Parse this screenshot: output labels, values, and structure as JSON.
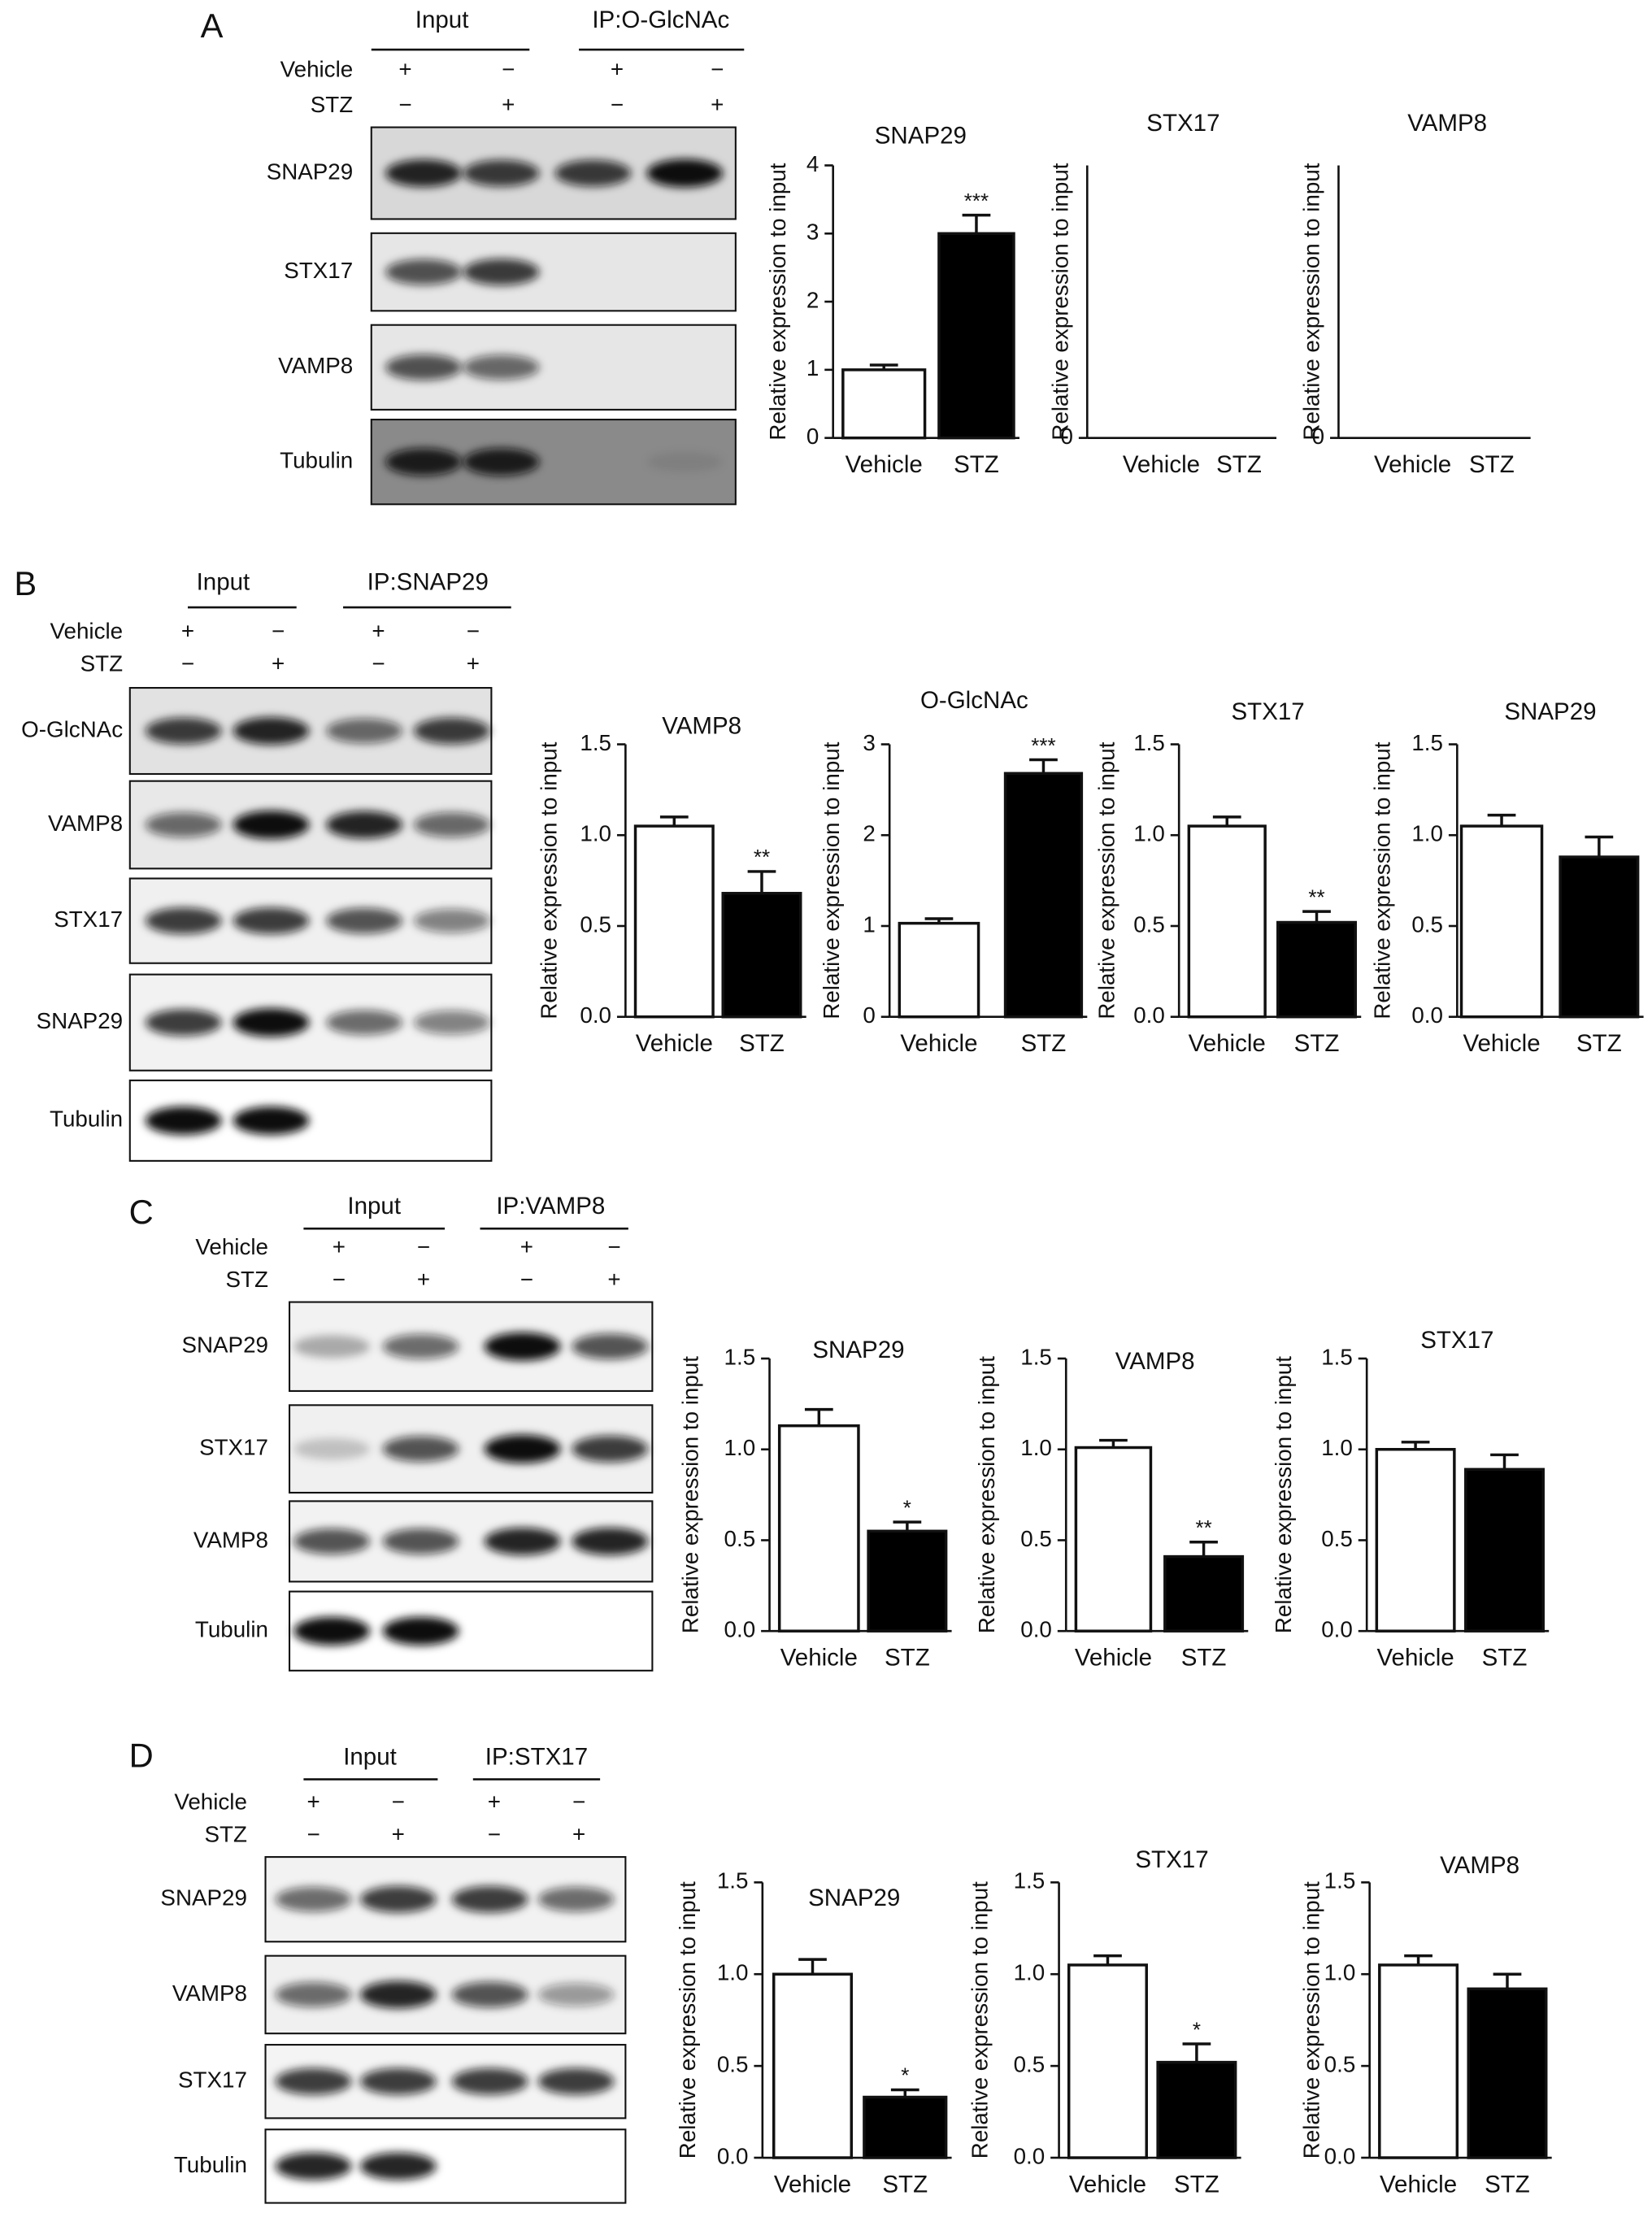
{
  "panels": [
    {
      "letter": "A",
      "groups": [
        "Input",
        "IP:O-GlcNAc"
      ],
      "conditions": [
        {
          "name": "Vehicle",
          "signs": [
            "+",
            "−",
            "+",
            "−"
          ]
        },
        {
          "name": "STZ",
          "signs": [
            "−",
            "+",
            "−",
            "+"
          ]
        }
      ],
      "blots": [
        "SNAP29",
        "STX17",
        "VAMP8",
        "Tubulin"
      ]
    },
    {
      "letter": "B",
      "groups": [
        "Input",
        "IP:SNAP29"
      ],
      "conditions": [
        {
          "name": "Vehicle",
          "signs": [
            "+",
            "−",
            "+",
            "−"
          ]
        },
        {
          "name": "STZ",
          "signs": [
            "−",
            "+",
            "−",
            "+"
          ]
        }
      ],
      "blots": [
        "O-GlcNAc",
        "VAMP8",
        "STX17",
        "SNAP29",
        "Tubulin"
      ]
    },
    {
      "letter": "C",
      "groups": [
        "Input",
        "IP:VAMP8"
      ],
      "conditions": [
        {
          "name": "Vehicle",
          "signs": [
            "+",
            "−",
            "+",
            "−"
          ]
        },
        {
          "name": "STZ",
          "signs": [
            "−",
            "+",
            "−",
            "+"
          ]
        }
      ],
      "blots": [
        "SNAP29",
        "STX17",
        "VAMP8",
        "Tubulin"
      ]
    },
    {
      "letter": "D",
      "groups": [
        "Input",
        "IP:STX17"
      ],
      "conditions": [
        {
          "name": "Vehicle",
          "signs": [
            "+",
            "−",
            "+",
            "−"
          ]
        },
        {
          "name": "STZ",
          "signs": [
            "−",
            "+",
            "−",
            "+"
          ]
        }
      ],
      "blots": [
        "SNAP29",
        "VAMP8",
        "STX17",
        "Tubulin"
      ]
    }
  ],
  "chart_data": [
    {
      "type": "bar",
      "title": "SNAP29",
      "y_label": "Relative expression to input",
      "categories": [
        "Vehicle",
        "STZ"
      ],
      "values": [
        1.0,
        3.0
      ],
      "errors": [
        0.07,
        0.27
      ],
      "colors": [
        "#ffffff",
        "#000000"
      ],
      "annotations": [
        {
          "category": "STZ",
          "text": "***"
        }
      ],
      "ylim": [
        0,
        4
      ],
      "yticks": [
        0,
        1,
        2,
        3,
        4
      ]
    },
    {
      "type": "bar",
      "title": "STX17",
      "y_label": "Relative expression to input",
      "categories": [
        "Vehicle",
        "STZ"
      ],
      "values": [
        0,
        0
      ],
      "errors": [
        0,
        0
      ],
      "colors": [
        "#ffffff",
        "#000000"
      ],
      "ylim": [
        0,
        4
      ],
      "yticks": [
        0
      ]
    },
    {
      "type": "bar",
      "title": "VAMP8",
      "y_label": "Relative expression to input",
      "categories": [
        "Vehicle",
        "STZ"
      ],
      "values": [
        0,
        0
      ],
      "errors": [
        0,
        0
      ],
      "colors": [
        "#ffffff",
        "#000000"
      ],
      "ylim": [
        0,
        4
      ],
      "yticks": [
        0
      ]
    },
    {
      "type": "bar",
      "title": "VAMP8",
      "y_label": "Relative expression to input",
      "categories": [
        "Vehicle",
        "STZ"
      ],
      "values": [
        1.05,
        0.68
      ],
      "errors": [
        0.05,
        0.12
      ],
      "colors": [
        "#ffffff",
        "#000000"
      ],
      "annotations": [
        {
          "category": "STZ",
          "text": "**"
        }
      ],
      "ylim": [
        0,
        1.5
      ],
      "yticks": [
        {
          "value": 0,
          "label": "0.0"
        },
        {
          "value": 0.5,
          "label": "0.5"
        },
        {
          "value": 1,
          "label": "1.0"
        },
        {
          "value": 1.5,
          "label": "1.5"
        }
      ]
    },
    {
      "type": "bar",
      "title": "O-GlcNAc",
      "y_label": "Relative expression to input",
      "categories": [
        "Vehicle",
        "STZ"
      ],
      "values": [
        1.03,
        2.68
      ],
      "errors": [
        0.05,
        0.15
      ],
      "colors": [
        "#ffffff",
        "#000000"
      ],
      "annotations": [
        {
          "category": "STZ",
          "text": "***"
        }
      ],
      "ylim": [
        0,
        3
      ],
      "yticks": [
        0,
        1,
        2,
        3
      ]
    },
    {
      "type": "bar",
      "title": "STX17",
      "y_label": "Relative expression to input",
      "categories": [
        "Vehicle",
        "STZ"
      ],
      "values": [
        1.05,
        0.52
      ],
      "errors": [
        0.05,
        0.06
      ],
      "colors": [
        "#ffffff",
        "#000000"
      ],
      "annotations": [
        {
          "category": "STZ",
          "text": "**"
        }
      ],
      "ylim": [
        0,
        1.5
      ],
      "yticks": [
        {
          "value": 0,
          "label": "0.0"
        },
        {
          "value": 0.5,
          "label": "0.5"
        },
        {
          "value": 1,
          "label": "1.0"
        },
        {
          "value": 1.5,
          "label": "1.5"
        }
      ]
    },
    {
      "type": "bar",
      "title": "SNAP29",
      "y_label": "Relative expression to input",
      "categories": [
        "Vehicle",
        "STZ"
      ],
      "values": [
        1.05,
        0.88
      ],
      "errors": [
        0.06,
        0.11
      ],
      "colors": [
        "#ffffff",
        "#000000"
      ],
      "ylim": [
        0,
        1.5
      ],
      "yticks": [
        {
          "value": 0,
          "label": "0.0"
        },
        {
          "value": 0.5,
          "label": "0.5"
        },
        {
          "value": 1,
          "label": "1.0"
        },
        {
          "value": 1.5,
          "label": "1.5"
        }
      ]
    },
    {
      "type": "bar",
      "title": "SNAP29",
      "y_label": "Relative expression to input",
      "categories": [
        "Vehicle",
        "STZ"
      ],
      "values": [
        1.13,
        0.55
      ],
      "errors": [
        0.09,
        0.05
      ],
      "colors": [
        "#ffffff",
        "#000000"
      ],
      "annotations": [
        {
          "category": "STZ",
          "text": "*"
        }
      ],
      "ylim": [
        0,
        1.5
      ],
      "yticks": [
        {
          "value": 0,
          "label": "0.0"
        },
        {
          "value": 0.5,
          "label": "0.5"
        },
        {
          "value": 1,
          "label": "1.0"
        },
        {
          "value": 1.5,
          "label": "1.5"
        }
      ]
    },
    {
      "type": "bar",
      "title": "VAMP8",
      "y_label": "Relative expression to input",
      "categories": [
        "Vehicle",
        "STZ"
      ],
      "values": [
        1.01,
        0.41
      ],
      "errors": [
        0.04,
        0.08
      ],
      "colors": [
        "#ffffff",
        "#000000"
      ],
      "annotations": [
        {
          "category": "STZ",
          "text": "**"
        }
      ],
      "ylim": [
        0,
        1.5
      ],
      "yticks": [
        {
          "value": 0,
          "label": "0.0"
        },
        {
          "value": 0.5,
          "label": "0.5"
        },
        {
          "value": 1,
          "label": "1.0"
        },
        {
          "value": 1.5,
          "label": "1.5"
        }
      ]
    },
    {
      "type": "bar",
      "title": "STX17",
      "y_label": "Relative expression to input",
      "categories": [
        "Vehicle",
        "STZ"
      ],
      "values": [
        1.0,
        0.89
      ],
      "errors": [
        0.04,
        0.08
      ],
      "colors": [
        "#ffffff",
        "#000000"
      ],
      "ylim": [
        0,
        1.5
      ],
      "yticks": [
        {
          "value": 0,
          "label": "0.0"
        },
        {
          "value": 0.5,
          "label": "0.5"
        },
        {
          "value": 1,
          "label": "1.0"
        },
        {
          "value": 1.5,
          "label": "1.5"
        }
      ]
    },
    {
      "type": "bar",
      "title": "SNAP29",
      "y_label": "Relative expression to input",
      "categories": [
        "Vehicle",
        "STZ"
      ],
      "values": [
        1.0,
        0.33
      ],
      "errors": [
        0.08,
        0.04
      ],
      "colors": [
        "#ffffff",
        "#000000"
      ],
      "annotations": [
        {
          "category": "STZ",
          "text": "*"
        }
      ],
      "ylim": [
        0,
        1.5
      ],
      "yticks": [
        {
          "value": 0,
          "label": "0.0"
        },
        {
          "value": 0.5,
          "label": "0.5"
        },
        {
          "value": 1,
          "label": "1.0"
        },
        {
          "value": 1.5,
          "label": "1.5"
        }
      ]
    },
    {
      "type": "bar",
      "title": "STX17",
      "y_label": "Relative expression to input",
      "categories": [
        "Vehicle",
        "STZ"
      ],
      "values": [
        1.05,
        0.52
      ],
      "errors": [
        0.05,
        0.1
      ],
      "colors": [
        "#ffffff",
        "#000000"
      ],
      "annotations": [
        {
          "category": "STZ",
          "text": "*"
        }
      ],
      "ylim": [
        0,
        1.5
      ],
      "yticks": [
        {
          "value": 0,
          "label": "0.0"
        },
        {
          "value": 0.5,
          "label": "0.5"
        },
        {
          "value": 1,
          "label": "1.0"
        },
        {
          "value": 1.5,
          "label": "1.5"
        }
      ]
    },
    {
      "type": "bar",
      "title": "VAMP8",
      "y_label": "Relative expression to input",
      "categories": [
        "Vehicle",
        "STZ"
      ],
      "values": [
        1.05,
        0.92
      ],
      "errors": [
        0.05,
        0.08
      ],
      "colors": [
        "#ffffff",
        "#000000"
      ],
      "ylim": [
        0,
        1.5
      ],
      "yticks": [
        {
          "value": 0,
          "label": "0.0"
        },
        {
          "value": 0.5,
          "label": "0.5"
        },
        {
          "value": 1,
          "label": "1.0"
        },
        {
          "value": 1.5,
          "label": "1.5"
        }
      ]
    }
  ]
}
